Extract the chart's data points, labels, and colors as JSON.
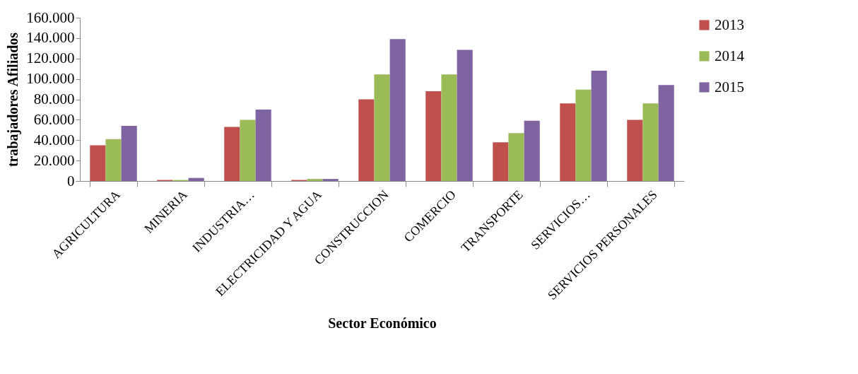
{
  "chart_data": {
    "type": "bar",
    "xlabel": "Sector Económico",
    "ylabel": "trabajadores Afiliados",
    "categories": [
      "AGRICULTURA",
      "MINERIA",
      "INDUSTRIA…",
      "ELECTRICIDAD Y AGUA",
      "CONSTRUCCION",
      "COMERCIO",
      "TRANSPORTE",
      "SERVICIOS…",
      "SERVICIOS PERSONALES"
    ],
    "series": [
      {
        "name": "2013",
        "color": "#c0504d",
        "values": [
          35000,
          1000,
          53000,
          1000,
          80000,
          88000,
          38000,
          76000,
          60000
        ]
      },
      {
        "name": "2014",
        "color": "#9bbb59",
        "values": [
          41000,
          1000,
          60000,
          2000,
          104500,
          104500,
          47000,
          89500,
          76000
        ]
      },
      {
        "name": "2015",
        "color": "#8064a2",
        "values": [
          54000,
          3000,
          70000,
          2000,
          139000,
          128500,
          59000,
          108000,
          94000
        ]
      }
    ],
    "ylim": [
      0,
      160000
    ],
    "yticks": [
      0,
      {
        "value": 20000,
        "label": "20.000"
      },
      {
        "value": 40000,
        "label": "40.000"
      },
      {
        "value": 60000,
        "label": "60.000"
      },
      {
        "value": 80000,
        "label": "80.000"
      },
      {
        "value": 100000,
        "label": "100.000"
      },
      {
        "value": 120000,
        "label": "120.000"
      },
      {
        "value": 140000,
        "label": "140.000"
      },
      {
        "value": 160000,
        "label": "160.000"
      }
    ],
    "grid": false,
    "legend": "right"
  }
}
